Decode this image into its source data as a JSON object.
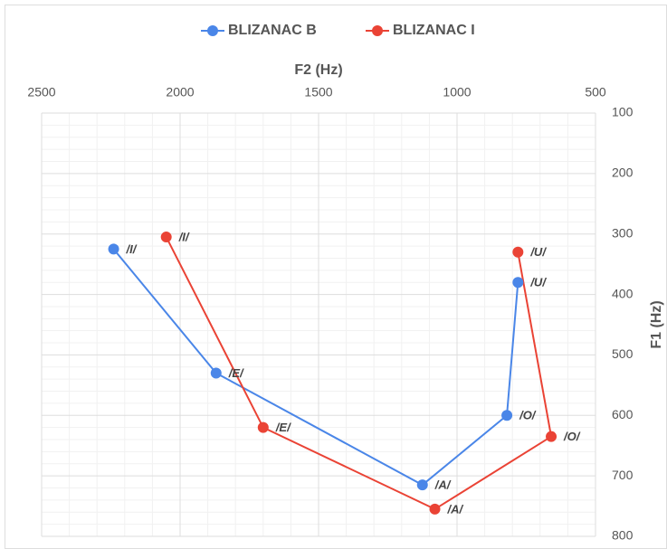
{
  "chart_data": {
    "type": "scatter_line",
    "x_label": "F2 (Hz)",
    "y_label": "F1 (Hz)",
    "xlim": [
      2500,
      500
    ],
    "xticks": [
      2500,
      2000,
      1500,
      1000,
      500
    ],
    "ylim": [
      800,
      100
    ],
    "yticks": [
      100,
      200,
      300,
      400,
      500,
      600,
      700,
      800
    ],
    "grid": true,
    "minor_grid": true,
    "legend": "top",
    "series": [
      {
        "name": "BLIZANAC B",
        "color": "#4a86e8",
        "x": [
          2240,
          1870,
          1125,
          820,
          780
        ],
        "values": [
          325,
          530,
          715,
          600,
          380
        ],
        "point_labels": [
          "/I/",
          "/E/",
          "/A/",
          "/O/",
          "/U/"
        ]
      },
      {
        "name": "BLIZANAC I",
        "color": "#ea4335",
        "x": [
          2050,
          1700,
          1080,
          660,
          780
        ],
        "values": [
          305,
          620,
          755,
          635,
          330
        ],
        "point_labels": [
          "/I/",
          "/E/",
          "/A/",
          "/O/",
          "/U/"
        ]
      }
    ]
  }
}
